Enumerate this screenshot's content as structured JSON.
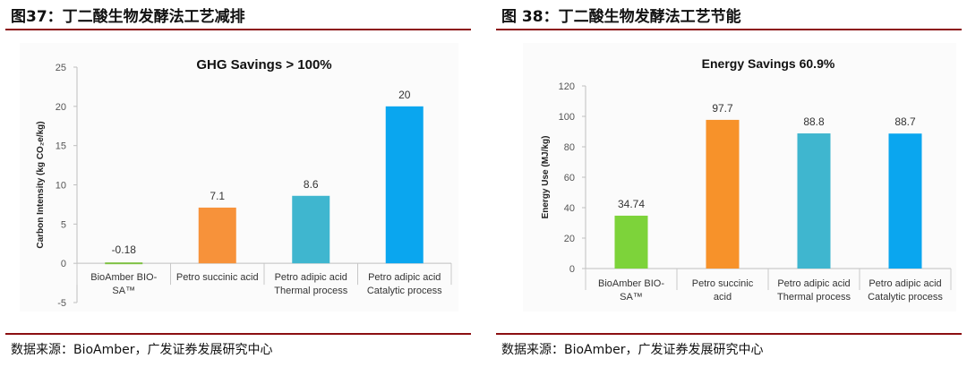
{
  "figures": [
    {
      "fig_title": "图37：丁二酸生物发酵法工艺减排",
      "source": "数据来源：BioAmber，广发证券发展研究中心"
    },
    {
      "fig_title": "图 38：丁二酸生物发酵法工艺节能",
      "source": "数据来源：BioAmber，广发证券发展研究中心"
    }
  ],
  "chart_data": [
    {
      "type": "bar",
      "title": "GHG Savings > 100%",
      "ylabel": "Carbon Intensity (kg CO₂e/kg)",
      "xlabel": "",
      "ylim": [
        -5,
        25
      ],
      "yticks": [
        -5,
        0,
        5,
        10,
        15,
        20,
        25
      ],
      "grid": false,
      "categories": [
        [
          "BioAmber BIO-",
          "SA™"
        ],
        [
          "Petro succinic acid"
        ],
        [
          "Petro adipic acid",
          "Thermal process"
        ],
        [
          "Petro adipic acid",
          "Catalytic process"
        ]
      ],
      "values": [
        -0.18,
        7.1,
        8.6,
        20
      ],
      "value_labels": [
        "-0.18",
        "7.1",
        "8.6",
        "20"
      ],
      "colors": [
        "#7dc142",
        "#f7923a",
        "#3fb6cf",
        "#0aa6ef"
      ]
    },
    {
      "type": "bar",
      "title": "Energy Savings 60.9%",
      "ylabel": "Energy Use (MJ/kg)",
      "xlabel": "",
      "ylim": [
        0,
        120
      ],
      "yticks": [
        0,
        20,
        40,
        60,
        80,
        100,
        120
      ],
      "grid": false,
      "categories": [
        [
          "BioAmber BIO-",
          "SA™"
        ],
        [
          "Petro succinic",
          "acid"
        ],
        [
          "Petro adipic acid",
          "Thermal process"
        ],
        [
          "Petro adipic acid",
          "Catalytic process"
        ]
      ],
      "values": [
        34.74,
        97.7,
        88.8,
        88.7
      ],
      "value_labels": [
        "34.74",
        "97.7",
        "88.8",
        "88.7"
      ],
      "colors": [
        "#7dd33a",
        "#f7922a",
        "#3fb6cf",
        "#0aa6ef"
      ]
    }
  ]
}
